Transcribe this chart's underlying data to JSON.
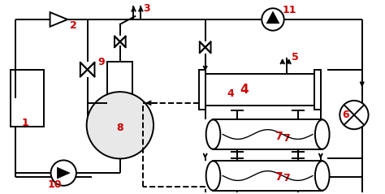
{
  "bg_color": "#ffffff",
  "lc": "#000000",
  "rc": "#cc0000",
  "lw": 1.4,
  "fig_w": 4.74,
  "fig_h": 2.39,
  "dpi": 100
}
